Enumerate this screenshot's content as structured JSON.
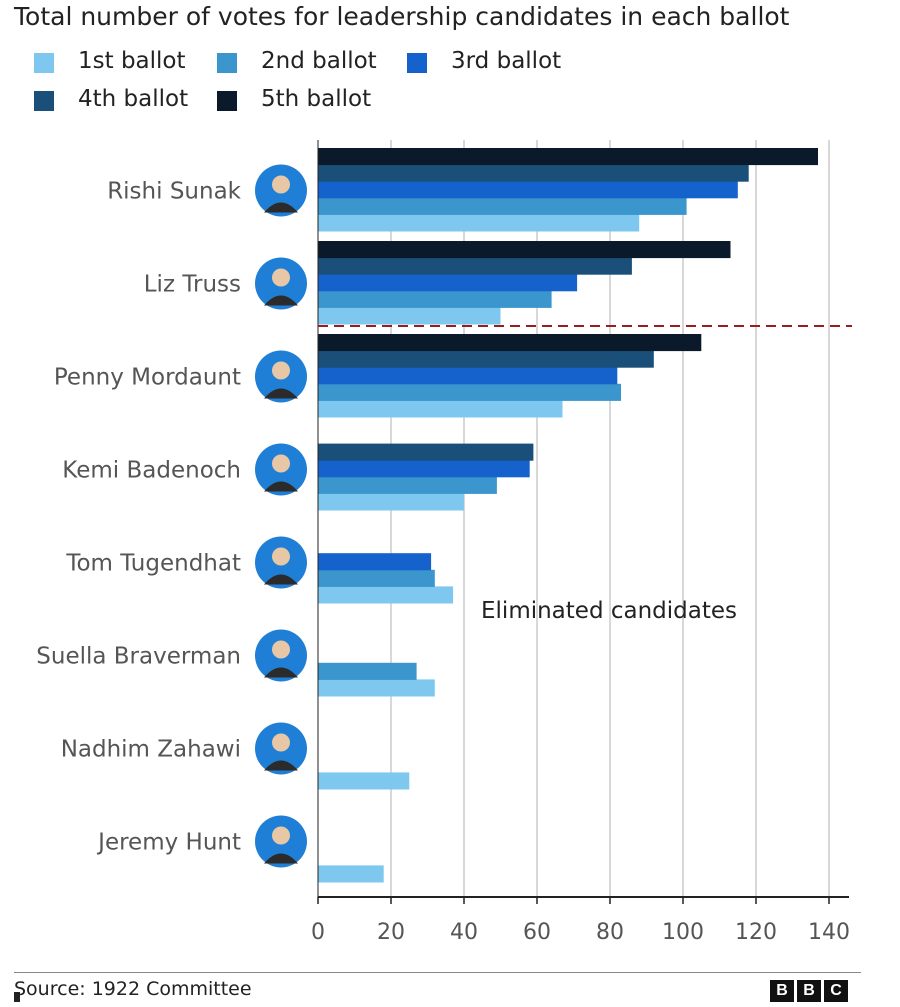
{
  "chart_data": {
    "type": "bar",
    "orientation": "horizontal",
    "title": "Total number of votes for leadership candidates in each ballot",
    "categories": [
      "Rishi Sunak",
      "Liz Truss",
      "Penny Mordaunt",
      "Kemi Badenoch",
      "Tom Tugendhat",
      "Suella Braverman",
      "Nadhim Zahawi",
      "Jeremy Hunt"
    ],
    "series": [
      {
        "name": "1st ballot",
        "color": "#7ec8f0",
        "values": [
          88,
          50,
          67,
          40,
          37,
          32,
          25,
          18
        ]
      },
      {
        "name": "2nd ballot",
        "color": "#3a96cc",
        "values": [
          101,
          64,
          83,
          49,
          32,
          27,
          null,
          null
        ]
      },
      {
        "name": "3rd ballot",
        "color": "#1562cc",
        "values": [
          115,
          71,
          82,
          58,
          31,
          null,
          null,
          null
        ]
      },
      {
        "name": "4th ballot",
        "color": "#1a4f7a",
        "values": [
          118,
          86,
          92,
          59,
          null,
          null,
          null,
          null
        ]
      },
      {
        "name": "5th ballot",
        "color": "#0b1a2a",
        "values": [
          137,
          113,
          105,
          null,
          null,
          null,
          null,
          null
        ]
      }
    ],
    "xlim": [
      0,
      140
    ],
    "xticks": [
      0,
      20,
      40,
      60,
      80,
      100,
      120,
      140
    ],
    "grid": true,
    "legend_position": "top",
    "annotation": "Eliminated candidates",
    "cutoff_line_after_category": "Liz Truss",
    "cutoff_line_color": "#9b1c1c"
  },
  "footer": {
    "source": "Source: 1922 Committee",
    "logo_letters": [
      "B",
      "B",
      "C"
    ]
  }
}
